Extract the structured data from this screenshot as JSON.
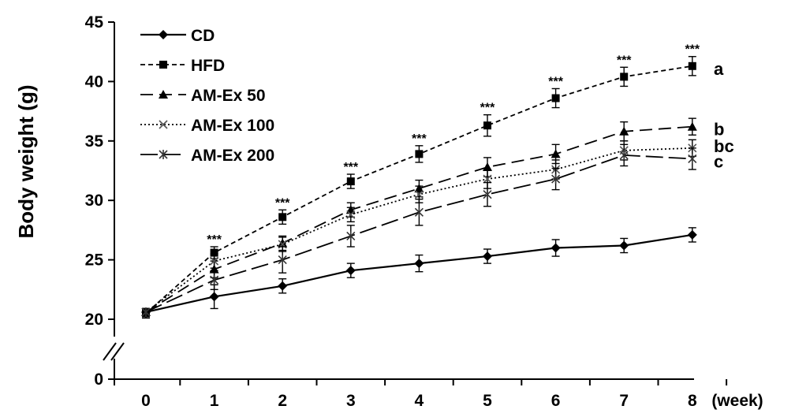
{
  "chart_data": {
    "type": "line",
    "title": "",
    "xlabel": "(week)",
    "ylabel": "Body weight  (g)",
    "x": [
      0,
      1,
      2,
      3,
      4,
      5,
      6,
      7,
      8
    ],
    "x_ticks": [
      "0",
      "1",
      "2",
      "3",
      "4",
      "5",
      "6",
      "7",
      "8"
    ],
    "y_ticks": [
      "0",
      "20",
      "25",
      "30",
      "35",
      "40",
      "45"
    ],
    "ylim": [
      20,
      45
    ],
    "y_axis_break": true,
    "grid": false,
    "legend_position": "top-left",
    "series": [
      {
        "name": "CD",
        "style": "solid",
        "marker": "diamond",
        "values": [
          20.6,
          21.9,
          22.8,
          24.1,
          24.7,
          25.3,
          26.0,
          26.2,
          27.1
        ],
        "errors": [
          0.3,
          1.0,
          0.6,
          0.6,
          0.7,
          0.6,
          0.7,
          0.6,
          0.6
        ]
      },
      {
        "name": "HFD",
        "style": "dashed-short",
        "marker": "square",
        "values": [
          20.5,
          25.6,
          28.6,
          31.6,
          33.9,
          36.3,
          38.6,
          40.4,
          41.3
        ],
        "errors": [
          0.4,
          0.5,
          0.6,
          0.6,
          0.7,
          0.9,
          0.8,
          0.8,
          0.8
        ]
      },
      {
        "name": "AM-Ex 50",
        "style": "dashed-long",
        "marker": "triangle",
        "values": [
          20.6,
          24.2,
          26.4,
          29.2,
          31.0,
          32.8,
          33.9,
          35.8,
          36.2
        ],
        "errors": [
          0.3,
          0.7,
          0.6,
          0.6,
          0.7,
          0.8,
          0.8,
          0.8,
          0.7
        ]
      },
      {
        "name": "AM-Ex 100",
        "style": "dotted",
        "marker": "x",
        "values": [
          20.6,
          24.9,
          26.3,
          28.8,
          30.5,
          31.8,
          32.6,
          34.2,
          34.4
        ],
        "errors": [
          0.3,
          0.6,
          0.6,
          0.6,
          0.7,
          0.8,
          0.8,
          0.8,
          0.7
        ]
      },
      {
        "name": "AM-Ex 200",
        "style": "dashed-long2",
        "marker": "asterisk",
        "values": [
          20.6,
          23.3,
          25.0,
          27.0,
          29.0,
          30.5,
          31.8,
          33.8,
          33.5
        ],
        "errors": [
          0.3,
          0.8,
          1.1,
          0.9,
          1.1,
          1.0,
          0.9,
          0.9,
          0.9
        ]
      }
    ],
    "significance": [
      {
        "x": 1,
        "label": "***"
      },
      {
        "x": 2,
        "label": "***"
      },
      {
        "x": 3,
        "label": "***"
      },
      {
        "x": 4,
        "label": "***"
      },
      {
        "x": 5,
        "label": "***"
      },
      {
        "x": 6,
        "label": "***"
      },
      {
        "x": 7,
        "label": "***"
      },
      {
        "x": 8,
        "label": "***"
      }
    ],
    "group_labels": [
      {
        "label": "a",
        "value": 41.1
      },
      {
        "label": "b",
        "value": 36.0
      },
      {
        "label": "bc",
        "value": 34.6
      },
      {
        "label": "c",
        "value": 33.3
      }
    ]
  }
}
